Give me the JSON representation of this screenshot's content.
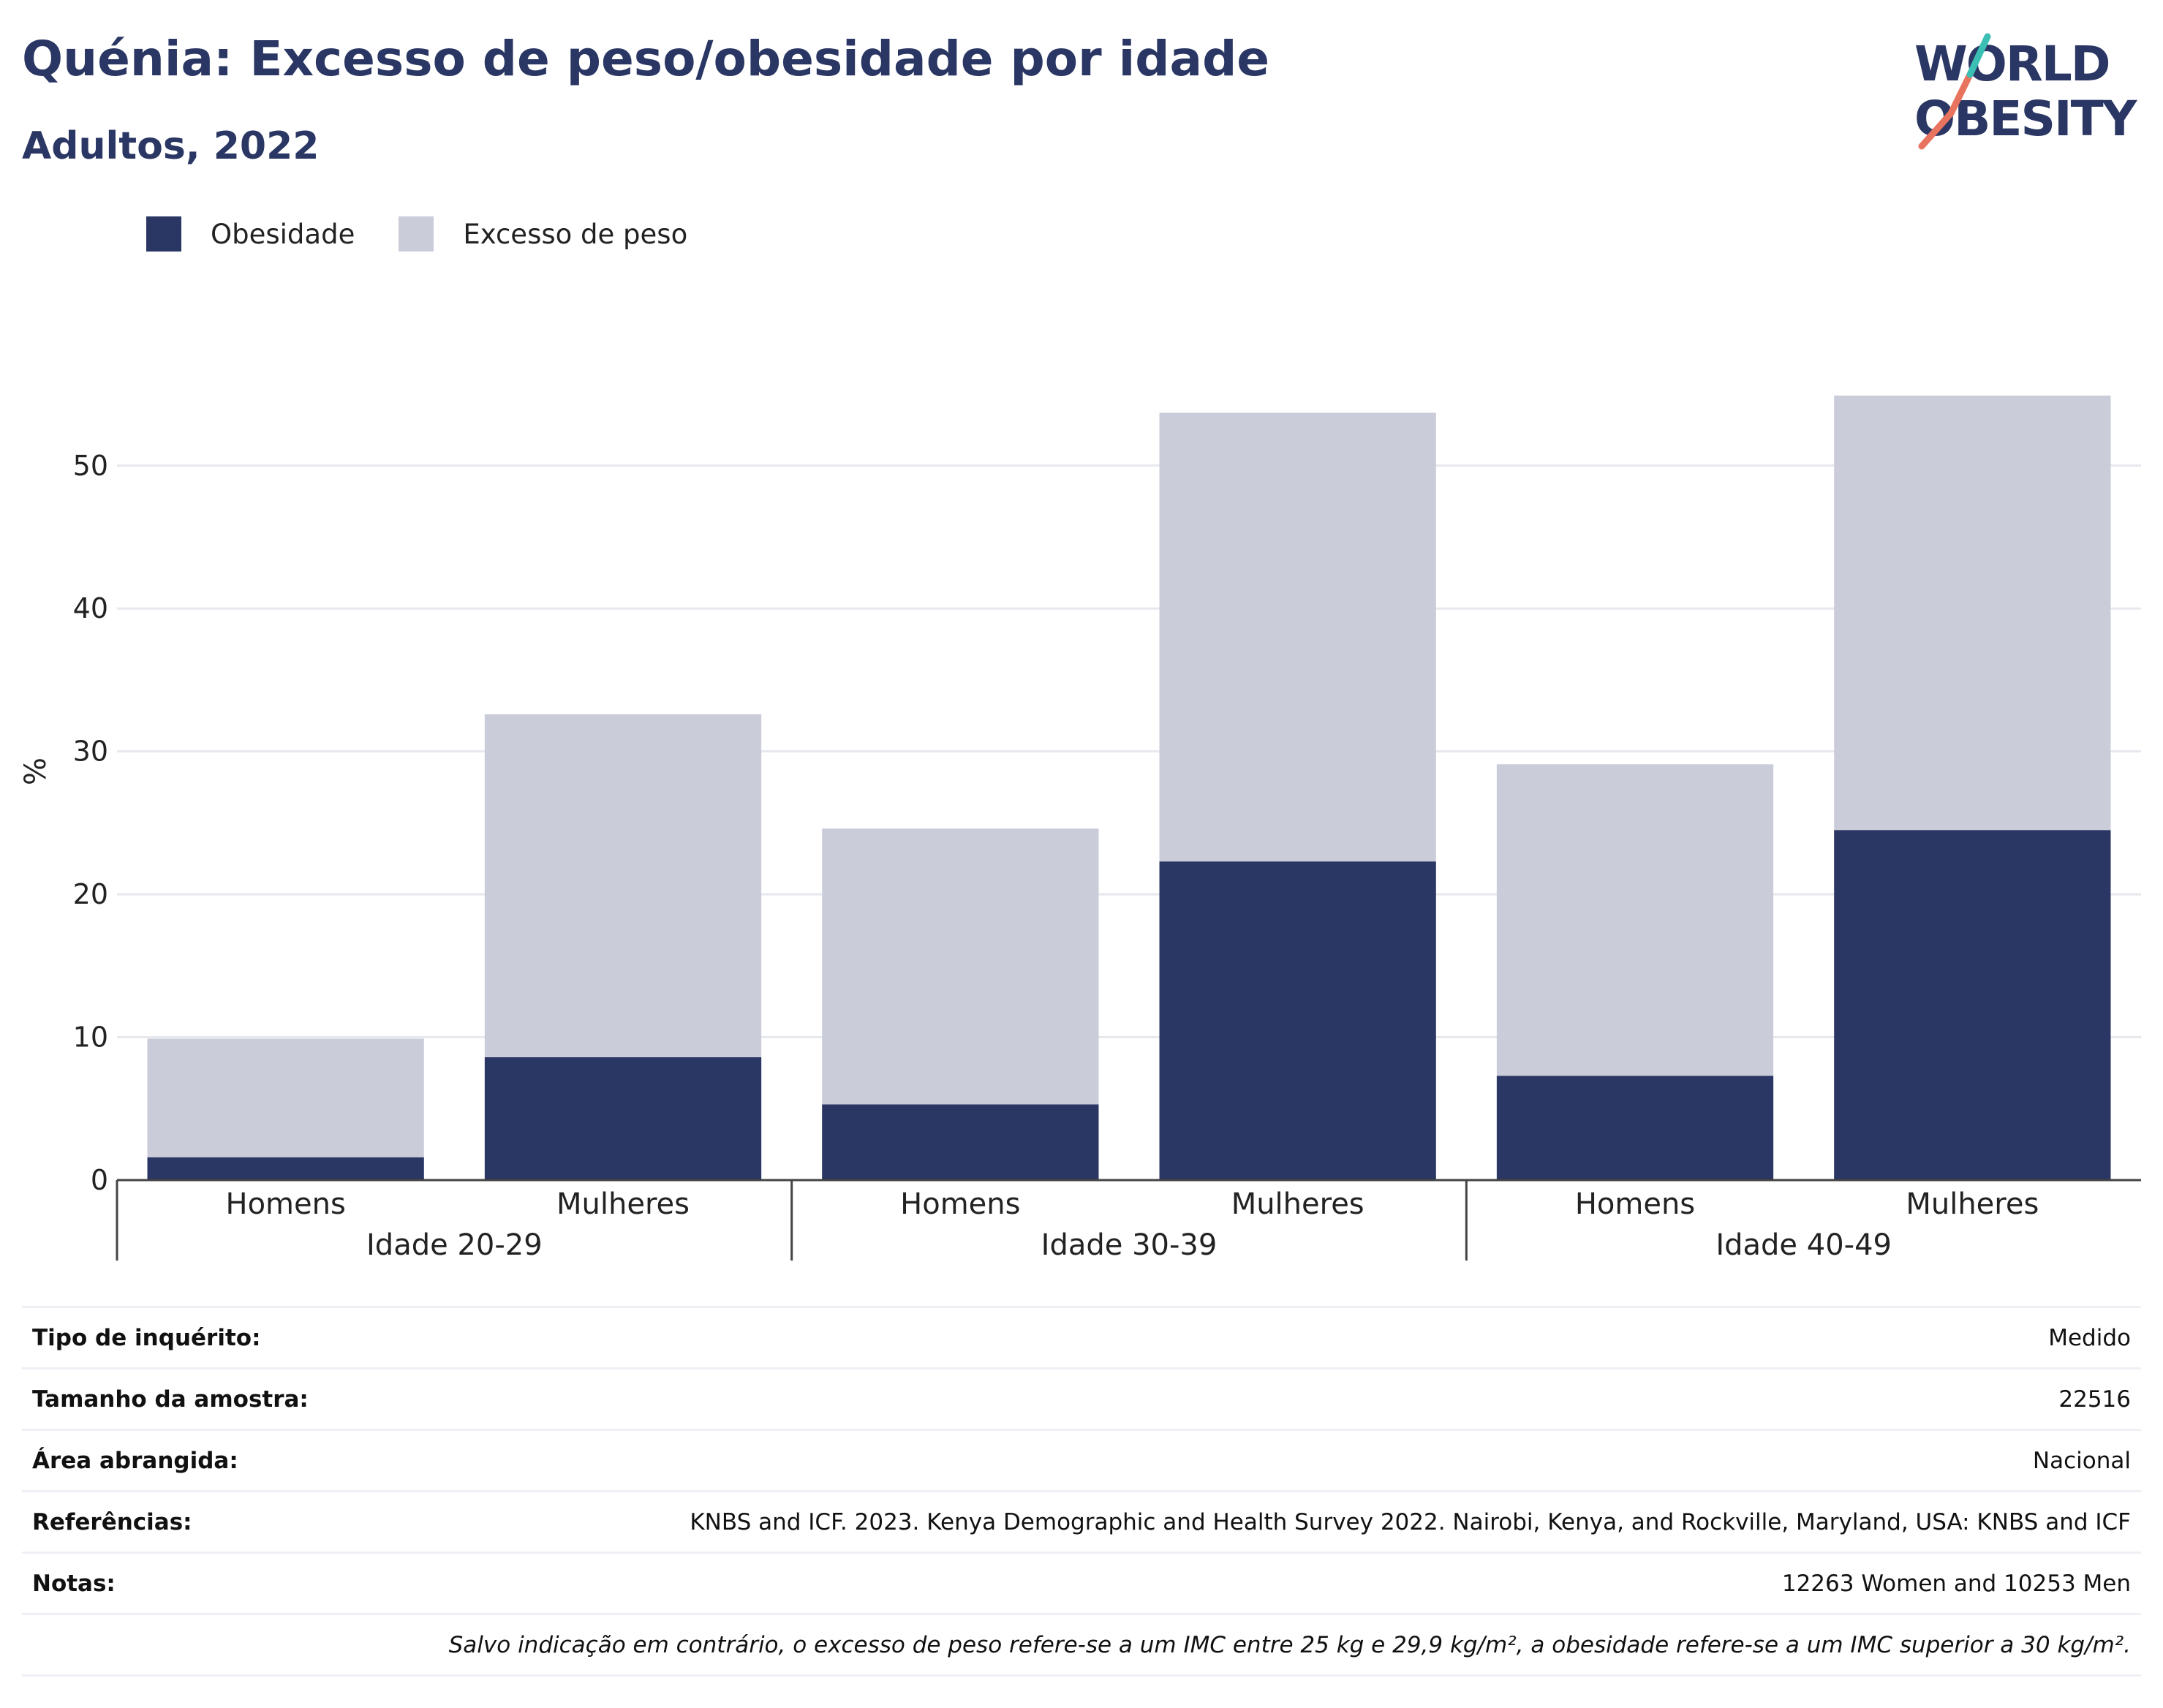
{
  "header": {
    "title": "Quénia: Excesso de peso/obesidade por idade",
    "subtitle": "Adultos, 2022",
    "logo_line1": "WORLD",
    "logo_line2": "OBESITY"
  },
  "legend": [
    {
      "label": "Obesidade",
      "color": "#2a3663"
    },
    {
      "label": "Excesso de peso",
      "color": "#cacdd9"
    }
  ],
  "chart_data": {
    "type": "bar",
    "stacked": true,
    "ylabel": "%",
    "ylim": [
      0,
      57
    ],
    "yticks": [
      0,
      10,
      20,
      30,
      40,
      50
    ],
    "grid": true,
    "legend_position": "top-left",
    "groups": [
      {
        "label": "Idade 20-29",
        "categories": [
          "Homens",
          "Mulheres"
        ]
      },
      {
        "label": "Idade 30-39",
        "categories": [
          "Homens",
          "Mulheres"
        ]
      },
      {
        "label": "Idade 40-49",
        "categories": [
          "Homens",
          "Mulheres"
        ]
      }
    ],
    "series": [
      {
        "name": "Obesidade",
        "color": "#2a3663",
        "values": [
          1.6,
          8.6,
          5.3,
          22.3,
          7.3,
          24.5
        ]
      },
      {
        "name": "Excesso de peso",
        "color": "#cacdd9",
        "values": [
          8.3,
          24.0,
          19.3,
          31.4,
          21.8,
          30.4
        ]
      }
    ]
  },
  "info_table": {
    "rows": [
      {
        "label": "Tipo de inquérito:",
        "value": "Medido"
      },
      {
        "label": "Tamanho da amostra:",
        "value": "22516"
      },
      {
        "label": "Área abrangida:",
        "value": "Nacional"
      },
      {
        "label": "Referências:",
        "value": "KNBS and ICF. 2023. Kenya Demographic and Health Survey 2022. Nairobi, Kenya, and Rockville, Maryland, USA: KNBS and ICF"
      },
      {
        "label": "Notas:",
        "value": "12263 Women and 10253 Men"
      }
    ],
    "footnote": "Salvo indicação em contrário, o excesso de peso refere-se a um IMC entre 25 kg e 29,9 kg/m², a obesidade refere-se a um IMC superior a 30 kg/m²."
  }
}
